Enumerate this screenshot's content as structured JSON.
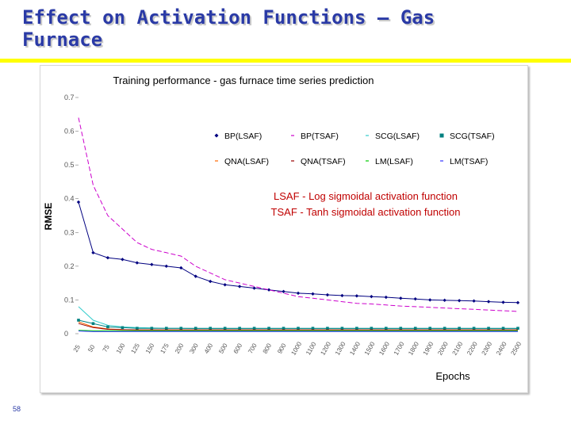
{
  "slide": {
    "title_line1": "Effect on Activation Functions – Gas",
    "title_line2": "Furnace",
    "page_number": "58"
  },
  "colors": {
    "title": "#2a3aa6",
    "rule": "#ffff00",
    "note": "#c00000"
  },
  "chart_data": {
    "type": "line",
    "title": "Training performance - gas furnace time series prediction",
    "xlabel": "Epochs",
    "ylabel": "RMSE",
    "ylim": [
      0,
      0.7
    ],
    "yticks": [
      "0",
      "0.1",
      "0.2",
      "0.3",
      "0.4",
      "0.5",
      "0.6",
      "0.7"
    ],
    "categories": [
      "25",
      "50",
      "75",
      "100",
      "125",
      "150",
      "175",
      "200",
      "300",
      "400",
      "500",
      "600",
      "700",
      "800",
      "900",
      "1000",
      "1100",
      "1200",
      "1300",
      "1400",
      "1500",
      "1600",
      "1700",
      "1800",
      "1900",
      "2000",
      "2100",
      "2200",
      "2300",
      "2400",
      "2500"
    ],
    "legend_position": "top-right",
    "annotations": [
      "LSAF - Log sigmoidal activation function",
      "TSAF - Tanh sigmoidal activation function"
    ],
    "series": [
      {
        "name": "BP(LSAF)",
        "color": "#000080",
        "marker": "diamond",
        "values": [
          0.39,
          0.24,
          0.225,
          0.22,
          0.21,
          0.205,
          0.2,
          0.195,
          0.17,
          0.155,
          0.145,
          0.14,
          0.135,
          0.13,
          0.125,
          0.12,
          0.118,
          0.115,
          0.113,
          0.112,
          0.11,
          0.108,
          0.105,
          0.103,
          0.1,
          0.099,
          0.098,
          0.097,
          0.095,
          0.093,
          0.092
        ]
      },
      {
        "name": "BP(TSAF)",
        "color": "#cc00cc",
        "marker": "none",
        "values": [
          0.64,
          0.44,
          0.35,
          0.31,
          0.27,
          0.25,
          0.24,
          0.23,
          0.2,
          0.18,
          0.16,
          0.15,
          0.14,
          0.13,
          0.12,
          0.11,
          0.105,
          0.1,
          0.095,
          0.09,
          0.088,
          0.085,
          0.082,
          0.08,
          0.078,
          0.076,
          0.074,
          0.072,
          0.07,
          0.068,
          0.066
        ]
      },
      {
        "name": "SCG(LSAF)",
        "color": "#33cccc",
        "marker": "none",
        "values": [
          0.08,
          0.04,
          0.025,
          0.02,
          0.018,
          0.017,
          0.016,
          0.016,
          0.015,
          0.015,
          0.015,
          0.015,
          0.015,
          0.015,
          0.015,
          0.015,
          0.015,
          0.015,
          0.015,
          0.015,
          0.015,
          0.015,
          0.015,
          0.015,
          0.015,
          0.015,
          0.015,
          0.015,
          0.015,
          0.015,
          0.015
        ]
      },
      {
        "name": "SCG(TSAF)",
        "color": "#008080",
        "marker": "square",
        "values": [
          0.04,
          0.03,
          0.02,
          0.018,
          0.016,
          0.016,
          0.016,
          0.016,
          0.016,
          0.016,
          0.016,
          0.016,
          0.016,
          0.016,
          0.016,
          0.016,
          0.016,
          0.016,
          0.016,
          0.016,
          0.016,
          0.016,
          0.016,
          0.016,
          0.016,
          0.016,
          0.016,
          0.016,
          0.016,
          0.016,
          0.016
        ]
      },
      {
        "name": "QNA(LSAF)",
        "color": "#ff6600",
        "marker": "none",
        "values": [
          0.035,
          0.02,
          0.014,
          0.012,
          0.011,
          0.011,
          0.011,
          0.011,
          0.011,
          0.011,
          0.011,
          0.011,
          0.011,
          0.011,
          0.011,
          0.011,
          0.011,
          0.011,
          0.011,
          0.011,
          0.011,
          0.011,
          0.011,
          0.011,
          0.011,
          0.011,
          0.011,
          0.011,
          0.011,
          0.011,
          0.011
        ]
      },
      {
        "name": "QNA(TSAF)",
        "color": "#990000",
        "marker": "none",
        "values": [
          0.03,
          0.018,
          0.013,
          0.012,
          0.011,
          0.011,
          0.011,
          0.011,
          0.011,
          0.011,
          0.011,
          0.011,
          0.011,
          0.011,
          0.011,
          0.011,
          0.011,
          0.011,
          0.011,
          0.011,
          0.011,
          0.011,
          0.011,
          0.011,
          0.011,
          0.011,
          0.011,
          0.011,
          0.011,
          0.011,
          0.011
        ]
      },
      {
        "name": "LM(LSAF)",
        "color": "#00cc00",
        "marker": "none",
        "values": [
          0.01,
          0.009,
          0.009,
          0.009,
          0.009,
          0.009,
          0.009,
          0.009,
          0.009,
          0.009,
          0.009,
          0.009,
          0.009,
          0.009,
          0.009,
          0.009,
          0.009,
          0.009,
          0.009,
          0.009,
          0.009,
          0.009,
          0.009,
          0.009,
          0.009,
          0.009,
          0.009,
          0.009,
          0.009,
          0.009,
          0.009
        ]
      },
      {
        "name": "LM(TSAF)",
        "color": "#3333ff",
        "marker": "none",
        "values": [
          0.008,
          0.006,
          0.006,
          0.006,
          0.006,
          0.006,
          0.006,
          0.006,
          0.006,
          0.006,
          0.006,
          0.006,
          0.006,
          0.006,
          0.006,
          0.006,
          0.006,
          0.006,
          0.006,
          0.006,
          0.006,
          0.006,
          0.006,
          0.006,
          0.006,
          0.006,
          0.006,
          0.006,
          0.006,
          0.006,
          0.006
        ]
      }
    ]
  }
}
